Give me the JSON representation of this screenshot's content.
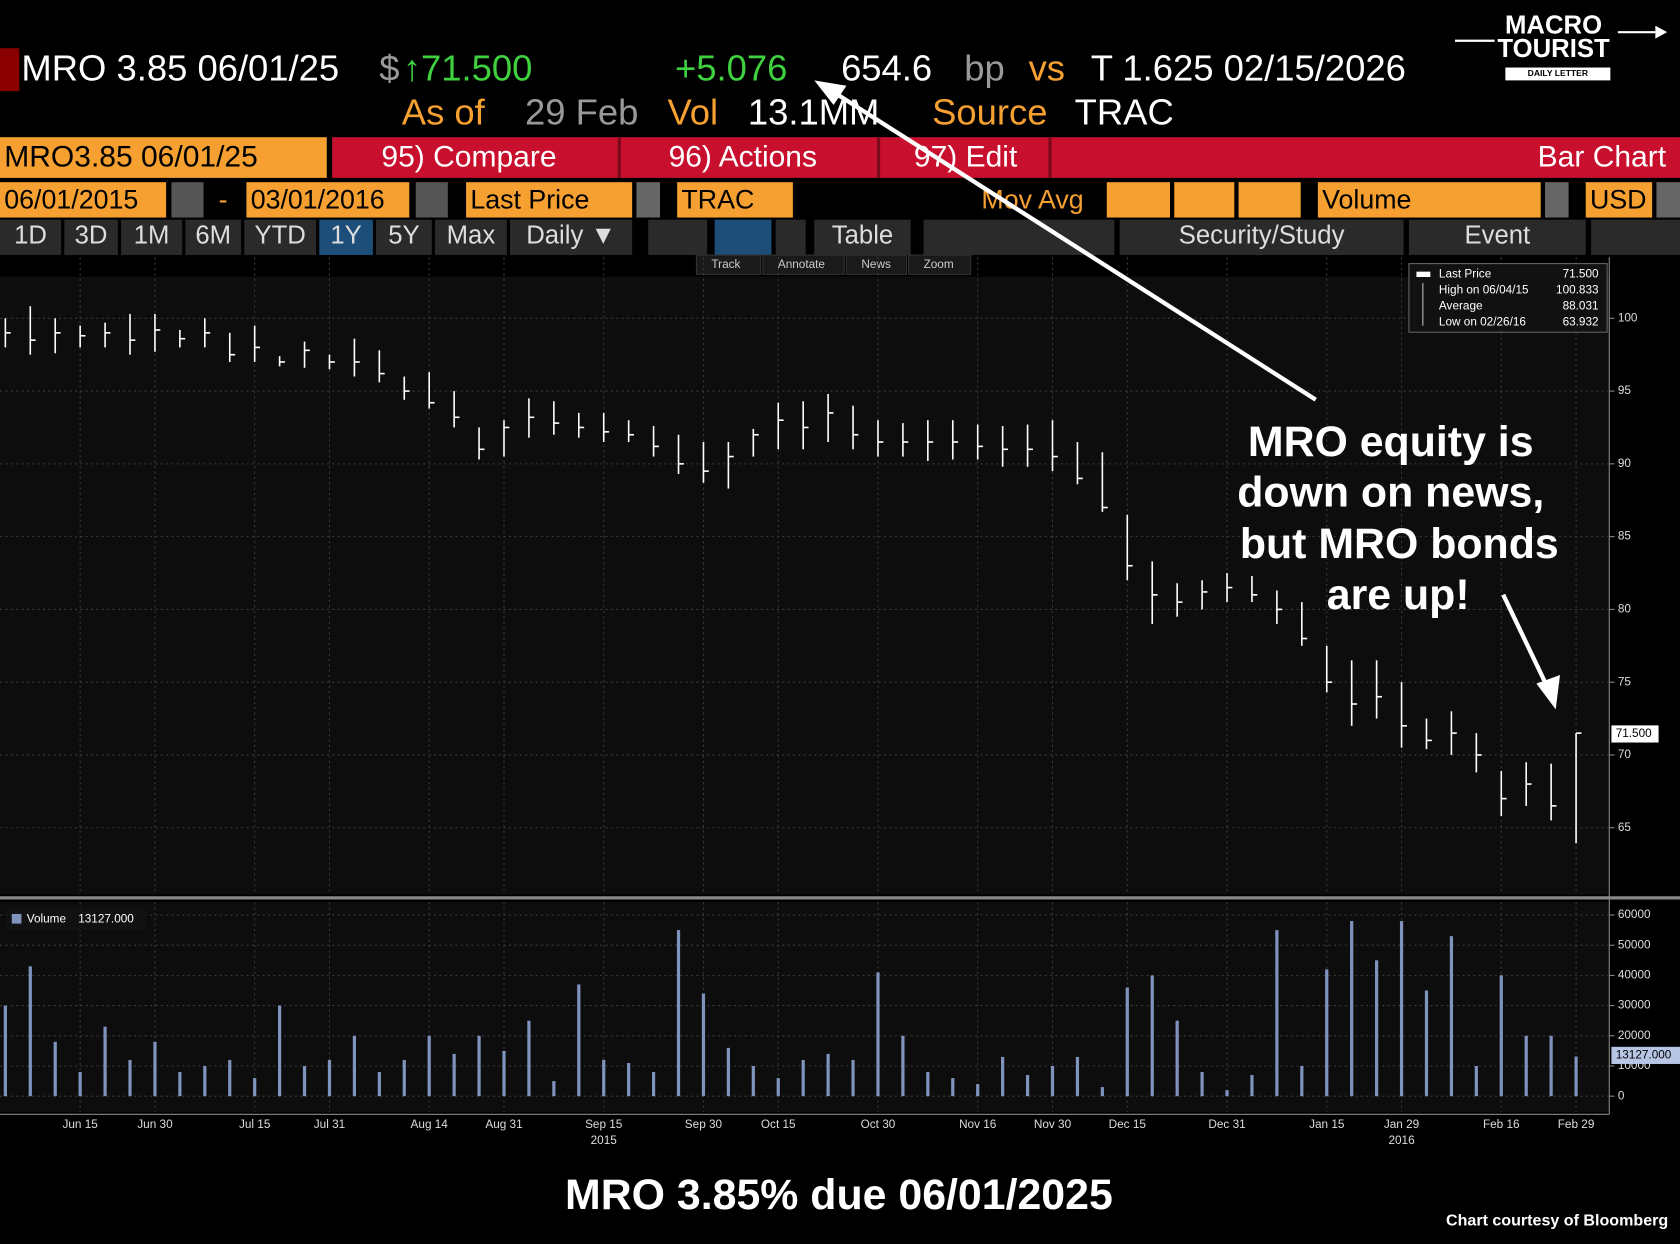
{
  "header": {
    "ticker": "MRO 3.85 06/01/25",
    "currency": "$",
    "price": "↑71.500",
    "change": "+5.076",
    "spread": "654.6",
    "spread_unit": "bp",
    "vs": "vs",
    "benchmark": "T 1.625 02/15/2026",
    "as_of_label": "As of",
    "as_of_date": "29 Feb",
    "vol_label": "Vol",
    "vol": "13.1MM",
    "source_label": "Source",
    "source": "TRAC"
  },
  "logo": {
    "lines": [
      "MACRO",
      "TOURIST",
      "DAILY LETTER"
    ]
  },
  "toolbar": {
    "row1": [
      "MRO3.85 06/01/25",
      "95) Compare",
      "96) Actions",
      "97) Edit",
      "Bar Chart"
    ],
    "row2": [
      "06/01/2015",
      "-",
      "03/01/2016",
      "Last Price",
      "TRAC",
      "Mov Avg",
      "Volume",
      "USD"
    ],
    "row3": [
      "1D",
      "3D",
      "1M",
      "6M",
      "YTD",
      "1Y",
      "5Y",
      "Max",
      "Daily ▼",
      "Table",
      "Security/Study",
      "Event"
    ],
    "tools": [
      "Track",
      "Annotate",
      "News",
      "Zoom"
    ]
  },
  "chart_data": {
    "type": "ohlc",
    "categories": [
      null,
      null,
      null,
      "Jun 15",
      null,
      null,
      "Jun 30",
      null,
      null,
      null,
      "Jul 15",
      null,
      null,
      "Jul 31",
      null,
      null,
      null,
      "Aug 14",
      null,
      null,
      "Aug 31",
      null,
      null,
      null,
      "Sep 15",
      null,
      null,
      null,
      "Sep 30",
      null,
      null,
      "Oct 15",
      null,
      null,
      null,
      "Oct 30",
      null,
      null,
      null,
      "Nov 16",
      null,
      null,
      "Nov 30",
      null,
      null,
      "Dec 15",
      null,
      null,
      null,
      "Dec 31",
      null,
      null,
      null,
      "Jan 15",
      null,
      null,
      "Jan 29",
      null,
      null,
      null,
      "Feb 16",
      null,
      null,
      "Feb 29"
    ],
    "year_labels": [
      null,
      null,
      null,
      null,
      null,
      null,
      null,
      null,
      null,
      null,
      null,
      null,
      null,
      null,
      null,
      null,
      null,
      null,
      null,
      null,
      null,
      null,
      null,
      null,
      "2015",
      null,
      null,
      null,
      null,
      null,
      null,
      null,
      null,
      null,
      null,
      null,
      null,
      null,
      null,
      null,
      null,
      null,
      null,
      null,
      null,
      null,
      null,
      null,
      null,
      null,
      null,
      null,
      null,
      null,
      null,
      null,
      "2016",
      null,
      null,
      null,
      null,
      null,
      null,
      null
    ],
    "ohlc": {
      "color": "#ffffff",
      "high": [
        100,
        100.833,
        100,
        99.5,
        99.7,
        100.3,
        100.3,
        99.2,
        100,
        99,
        99.5,
        97.4,
        98.4,
        97.5,
        98.6,
        97.8,
        96,
        96.3,
        95,
        92.5,
        93,
        94.5,
        94.3,
        93.5,
        93.5,
        93,
        92.6,
        92,
        91.5,
        91.5,
        92.4,
        94.2,
        94.3,
        94.8,
        94,
        93,
        92.8,
        93,
        93,
        92.7,
        92.6,
        92.7,
        93,
        91.5,
        90.8,
        86.5,
        83.3,
        81.8,
        82,
        82.5,
        82.3,
        81.3,
        80.5,
        77.5,
        76.5,
        76.5,
        75,
        72.5,
        73,
        71.5,
        68.9,
        69.5,
        69.4,
        71.5
      ],
      "low": [
        98,
        97.5,
        97.6,
        98,
        98,
        97.5,
        97.7,
        98,
        98,
        97,
        97,
        96.7,
        96.6,
        96.5,
        96,
        95.6,
        94.4,
        93.8,
        92.5,
        90.3,
        90.5,
        91.8,
        92,
        91.8,
        91.5,
        91.5,
        90.5,
        89.3,
        88.7,
        88.3,
        90.5,
        91,
        91,
        91.5,
        91,
        90.5,
        90.5,
        90.2,
        90.3,
        90.3,
        89.8,
        89.8,
        89.5,
        88.6,
        86.7,
        82,
        79,
        79.5,
        80,
        80.5,
        80.5,
        79,
        77.5,
        74.3,
        72,
        72.5,
        70.5,
        70.4,
        70,
        68.8,
        65.8,
        66.5,
        65.5,
        63.932
      ],
      "close": [
        99,
        98.5,
        99,
        98.8,
        99,
        98.5,
        99.2,
        98.6,
        99,
        97.5,
        98,
        97,
        97.8,
        97,
        97,
        96.2,
        95,
        94.2,
        93.2,
        91,
        92.5,
        93.2,
        92.8,
        92.5,
        92.2,
        92,
        91.2,
        90,
        89.5,
        90.5,
        92,
        93,
        92.5,
        93.5,
        92,
        91.5,
        91.5,
        91.5,
        91.5,
        91.2,
        91,
        91,
        90.5,
        89,
        87,
        83,
        81,
        80.5,
        81.2,
        81.5,
        81,
        80,
        78,
        75,
        73.5,
        74,
        72,
        71,
        71.5,
        70,
        67,
        68,
        66.5,
        71.5
      ]
    },
    "ylim": [
      60.4,
      104.2
    ],
    "yticks": [
      65,
      70,
      75,
      80,
      85,
      90,
      95,
      100
    ],
    "grid": true,
    "legend": [
      {
        "label": "Last Price",
        "value": "71.500"
      },
      {
        "label": "High on 06/04/15",
        "value": "100.833"
      },
      {
        "label": "Average",
        "value": "88.031"
      },
      {
        "label": "Low on 02/26/16",
        "value": "63.932"
      }
    ],
    "volume": {
      "color": "#7f93bd",
      "legend": {
        "label": "Volume",
        "value": "13127.000"
      },
      "values": [
        30000,
        43000,
        18000,
        8000,
        23000,
        12000,
        18000,
        8000,
        10000,
        12000,
        6000,
        30000,
        10000,
        12000,
        20000,
        8000,
        12000,
        20000,
        14000,
        20000,
        15000,
        25000,
        5000,
        37000,
        12000,
        11000,
        8000,
        55000,
        34000,
        16000,
        10000,
        6000,
        12000,
        14000,
        12000,
        41000,
        20000,
        8000,
        6000,
        4000,
        13000,
        7000,
        10000,
        13000,
        3000,
        36000,
        40000,
        25000,
        8000,
        2000,
        7000,
        55000,
        10000,
        42000,
        58000,
        45000,
        58000,
        35000,
        53000,
        10000,
        40000,
        20000,
        20000,
        13127
      ],
      "ylim": [
        -5300,
        64250
      ],
      "yticks": [
        0,
        10000,
        20000,
        30000,
        40000,
        50000,
        60000
      ]
    },
    "annotation": [
      "MRO equity is",
      "down on news,",
      "but MRO bonds",
      "are up!"
    ],
    "caption": "MRO 3.85% due 06/01/2025",
    "credit": "Chart courtesy of Bloomberg"
  }
}
